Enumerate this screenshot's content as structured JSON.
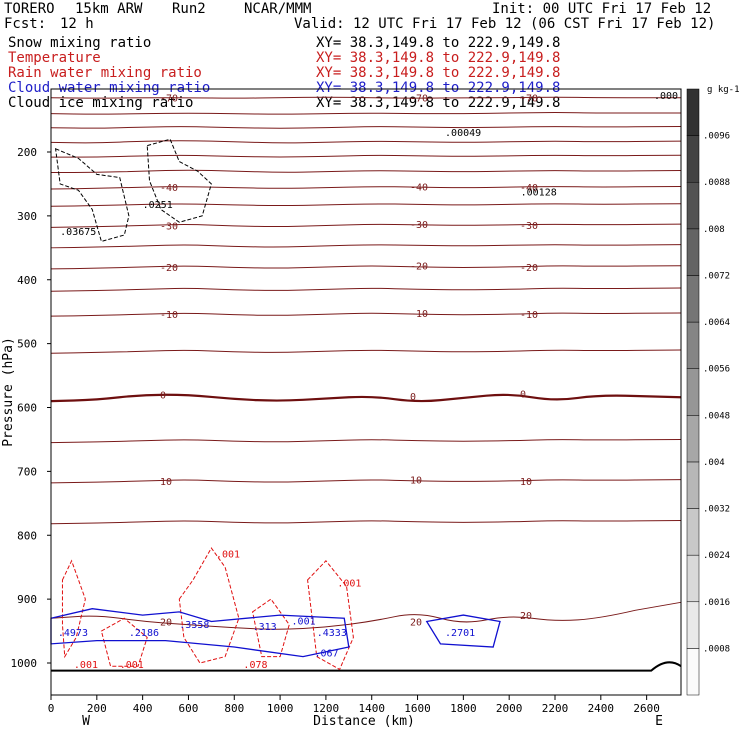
{
  "header": {
    "model": "TORERO",
    "resolution": "15km ARW",
    "run": "Run2",
    "org": "NCAR/MMM",
    "init": "Init: 00 UTC Fri 17 Feb 12",
    "fcst_label": "Fcst:",
    "fcst_value": "12 h",
    "valid": "Valid: 12 UTC Fri 17 Feb 12 (06 CST Fri 17 Feb 12)"
  },
  "fields": [
    {
      "name": "Snow mixing ratio",
      "color": "#000000",
      "xy": "XY= 38.3,149.8 to 222.9,149.8"
    },
    {
      "name": "Temperature",
      "color": "#c81e1e",
      "xy": "XY= 38.3,149.8 to 222.9,149.8"
    },
    {
      "name": "Rain water mixing ratio",
      "color": "#c81e1e",
      "xy": "XY= 38.3,149.8 to 222.9,149.8"
    },
    {
      "name": "Cloud water mixing ratio",
      "color": "#1e1ec8",
      "xy": "XY= 38.3,149.8 to 222.9,149.8"
    },
    {
      "name": "Cloud ice mixing ratio",
      "color": "#000000",
      "xy": "XY= 38.3,149.8 to 222.9,149.8"
    }
  ],
  "colors": {
    "temperature": "#7a1a1a",
    "zero_isotherm": "#6e0f0f",
    "rain": "#e01010",
    "cloud_water": "#1010d0",
    "snow": "#000000"
  },
  "chart_data": {
    "type": "cross-section",
    "xlabel": "Distance (km)",
    "ylabel": "Pressure (hPa)",
    "x_range": [
      0,
      2750
    ],
    "y_range": [
      1050,
      100
    ],
    "x_ticks": [
      0,
      200,
      400,
      600,
      800,
      1000,
      1200,
      1400,
      1600,
      1800,
      2000,
      2200,
      2400,
      2600
    ],
    "y_ticks": [
      200,
      300,
      400,
      500,
      600,
      700,
      800,
      900,
      1000
    ],
    "left_end": "W",
    "right_end": "E",
    "temperature_isotherms": [
      {
        "value": -70,
        "label": "-70",
        "p": [
          115,
          116,
          115,
          115,
          116,
          115,
          114,
          115,
          116,
          115,
          115,
          114,
          115,
          115
        ]
      },
      {
        "value": -65,
        "label": "",
        "p": [
          140,
          141,
          140,
          139,
          140,
          141,
          140,
          139,
          140,
          140,
          139,
          138,
          139,
          139
        ]
      },
      {
        "value": -60,
        "label": "",
        "p": [
          162,
          163,
          161,
          160,
          162,
          163,
          162,
          160,
          161,
          162,
          161,
          160,
          161,
          160
        ]
      },
      {
        "value": -55,
        "label": "",
        "p": [
          185,
          186,
          183,
          182,
          184,
          186,
          185,
          183,
          184,
          185,
          184,
          183,
          184,
          183
        ]
      },
      {
        "value": -50,
        "label": "",
        "p": [
          208,
          208,
          206,
          205,
          207,
          208,
          207,
          205,
          206,
          207,
          206,
          205,
          206,
          205
        ]
      },
      {
        "value": -45,
        "label": "",
        "p": [
          232,
          232,
          230,
          228,
          230,
          232,
          231,
          229,
          230,
          231,
          230,
          229,
          230,
          229
        ]
      },
      {
        "value": -40,
        "label": "-40",
        "p": [
          258,
          257,
          255,
          254,
          256,
          257,
          256,
          254,
          255,
          256,
          255,
          254,
          255,
          254
        ]
      },
      {
        "value": -35,
        "label": "",
        "p": [
          285,
          284,
          282,
          281,
          283,
          284,
          283,
          281,
          282,
          283,
          282,
          281,
          282,
          281
        ]
      },
      {
        "value": -30,
        "label": "-30",
        "p": [
          318,
          317,
          315,
          313,
          316,
          317,
          315,
          313,
          314,
          315,
          314,
          313,
          314,
          313
        ]
      },
      {
        "value": -25,
        "label": "",
        "p": [
          350,
          349,
          347,
          345,
          348,
          349,
          347,
          345,
          346,
          347,
          346,
          345,
          346,
          345
        ]
      },
      {
        "value": -20,
        "label": "-20",
        "p": [
          383,
          382,
          380,
          378,
          381,
          382,
          380,
          378,
          380,
          381,
          380,
          378,
          379,
          378
        ]
      },
      {
        "value": -15,
        "label": "",
        "p": [
          418,
          417,
          415,
          413,
          416,
          417,
          415,
          413,
          415,
          416,
          415,
          413,
          414,
          413
        ]
      },
      {
        "value": -10,
        "label": "-10",
        "p": [
          457,
          456,
          454,
          452,
          455,
          456,
          454,
          452,
          454,
          455,
          454,
          452,
          453,
          452
        ]
      },
      {
        "value": -5,
        "label": "",
        "p": [
          515,
          514,
          512,
          510,
          513,
          514,
          512,
          510,
          512,
          513,
          512,
          510,
          511,
          510
        ]
      },
      {
        "value": 0,
        "label": "0",
        "p": [
          590,
          588,
          580,
          580,
          587,
          590,
          586,
          582,
          592,
          585,
          578,
          590,
          580,
          584
        ]
      },
      {
        "value": 5,
        "label": "",
        "p": [
          655,
          654,
          652,
          650,
          653,
          654,
          652,
          650,
          652,
          653,
          652,
          650,
          651,
          650
        ]
      },
      {
        "value": 10,
        "label": "10",
        "p": [
          718,
          717,
          715,
          713,
          716,
          717,
          715,
          713,
          715,
          716,
          715,
          713,
          714,
          713
        ]
      },
      {
        "value": 15,
        "label": "",
        "p": [
          782,
          781,
          779,
          777,
          780,
          781,
          779,
          777,
          779,
          780,
          779,
          777,
          778,
          777
        ]
      },
      {
        "value": 20,
        "label": "20",
        "p": [
          930,
          925,
          935,
          940,
          945,
          948,
          944,
          935,
          920,
          940,
          925,
          935,
          930,
          905
        ]
      }
    ],
    "isotherm_x": [
      0,
      200,
      400,
      600,
      800,
      1000,
      1200,
      1400,
      1600,
      1800,
      2000,
      2200,
      2400,
      2700
    ],
    "value_labels": [
      {
        "text": ".00049",
        "x": 1720,
        "p": 175,
        "field": "snow"
      },
      {
        "text": ".00128",
        "x": 2050,
        "p": 268,
        "field": "snow"
      },
      {
        "text": ".0251",
        "x": 400,
        "p": 288,
        "field": "snow"
      },
      {
        "text": ".03675",
        "x": 40,
        "p": 330,
        "field": "snow"
      },
      {
        "text": ".001",
        "x": 720,
        "p": 835,
        "field": "rain"
      },
      {
        "text": ".001",
        "x": 1250,
        "p": 880,
        "field": "rain"
      },
      {
        "text": ".3558",
        "x": 560,
        "p": 945,
        "field": "cloud"
      },
      {
        "text": ".313",
        "x": 880,
        "p": 948,
        "field": "cloud"
      },
      {
        "text": ".001",
        "x": 1050,
        "p": 940,
        "field": "cloud"
      },
      {
        "text": ".2701",
        "x": 1720,
        "p": 958,
        "field": "cloud"
      },
      {
        "text": ".4973",
        "x": 30,
        "p": 958,
        "field": "cloud"
      },
      {
        "text": ".2186",
        "x": 340,
        "p": 958,
        "field": "cloud"
      },
      {
        "text": ".4333",
        "x": 1160,
        "p": 958,
        "field": "cloud"
      },
      {
        "text": ".067",
        "x": 1150,
        "p": 990,
        "field": "cloud"
      },
      {
        "text": ".001",
        "x": 100,
        "p": 1008,
        "field": "rain"
      },
      {
        "text": ".001",
        "x": 300,
        "p": 1008,
        "field": "rain"
      },
      {
        "text": ".078",
        "x": 840,
        "p": 1008,
        "field": "rain"
      }
    ],
    "colorbar": {
      "unit": "g kg-1",
      "ticks": [
        ".0008",
        ".0016",
        ".0024",
        ".0032",
        ".004",
        ".0048",
        ".0056",
        ".0064",
        ".0072",
        ".008",
        ".0088",
        ".0096"
      ]
    },
    "top_right_value": ".000"
  }
}
